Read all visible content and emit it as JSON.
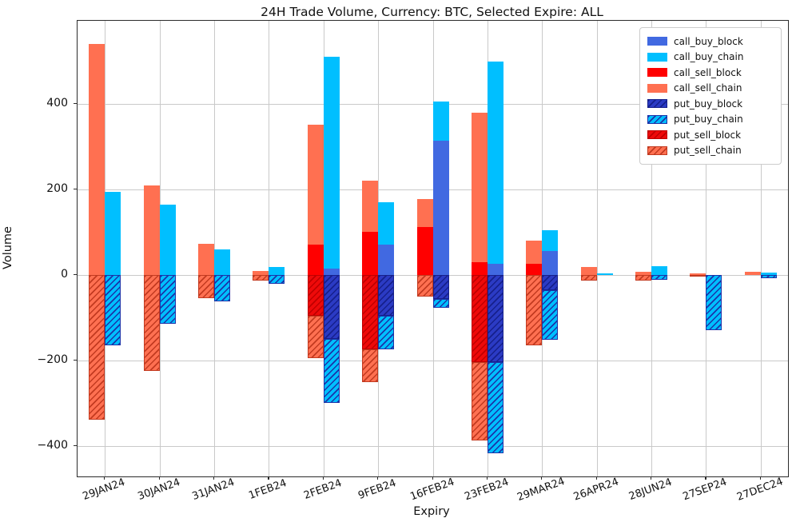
{
  "chart_data": {
    "type": "bar",
    "stacked": true,
    "title": "24H Trade Volume, Currency: BTC, Selected Expire: ALL",
    "xlabel": "Expiry",
    "ylabel": "Volume",
    "ylim": [
      -472,
      595
    ],
    "yticks": [
      -400,
      -200,
      0,
      200,
      400
    ],
    "grid": true,
    "legend_position": "upper right",
    "categories": [
      "29JAN24",
      "30JAN24",
      "31JAN24",
      "1FEB24",
      "2FEB24",
      "9FEB24",
      "16FEB24",
      "23FEB24",
      "29MAR24",
      "26APR24",
      "28JUN24",
      "27SEP24",
      "27DEC24"
    ],
    "bar_groups": {
      "sell_bar_series": [
        "call_sell_block",
        "call_sell_chain",
        "put_sell_block",
        "put_sell_chain"
      ],
      "buy_bar_series": [
        "call_buy_block",
        "call_buy_chain",
        "put_buy_block",
        "put_buy_chain"
      ]
    },
    "series": [
      {
        "name": "call_buy_block",
        "color": "#4169E1",
        "hatch": false,
        "hatch_color": null,
        "values": [
          0,
          0,
          0,
          0,
          15,
          70,
          315,
          25,
          55,
          0,
          0,
          0,
          0
        ]
      },
      {
        "name": "call_buy_chain",
        "color": "#00BFFF",
        "hatch": false,
        "hatch_color": null,
        "values": [
          195,
          165,
          60,
          18,
          495,
          100,
          90,
          475,
          50,
          3,
          20,
          0,
          5
        ]
      },
      {
        "name": "call_sell_block",
        "color": "#FF0000",
        "hatch": false,
        "hatch_color": null,
        "values": [
          0,
          0,
          0,
          0,
          70,
          100,
          112,
          30,
          25,
          0,
          0,
          0,
          0
        ]
      },
      {
        "name": "call_sell_chain",
        "color": "#FF7051",
        "hatch": false,
        "hatch_color": null,
        "values": [
          540,
          210,
          72,
          10,
          282,
          120,
          65,
          350,
          55,
          18,
          8,
          3,
          8
        ]
      },
      {
        "name": "put_buy_block",
        "color": "#2B3BC4",
        "hatch": true,
        "hatch_color": "#16208C",
        "values": [
          0,
          0,
          0,
          0,
          -150,
          -95,
          -57,
          -205,
          -35,
          0,
          0,
          0,
          0
        ]
      },
      {
        "name": "put_buy_chain",
        "color": "#00BFFF",
        "hatch": true,
        "hatch_color": "#1C33A8",
        "values": [
          -165,
          -115,
          -62,
          -20,
          -150,
          -80,
          -20,
          -212,
          -117,
          0,
          -12,
          -130,
          -8
        ]
      },
      {
        "name": "put_sell_block",
        "color": "#EE0A0A",
        "hatch": true,
        "hatch_color": "#C00000",
        "values": [
          0,
          0,
          0,
          0,
          -95,
          -175,
          0,
          -205,
          0,
          0,
          0,
          0,
          0
        ]
      },
      {
        "name": "put_sell_chain",
        "color": "#FF7051",
        "hatch": true,
        "hatch_color": "#C23A20",
        "values": [
          -340,
          -225,
          -55,
          -14,
          -100,
          -77,
          -50,
          -182,
          -165,
          -14,
          -13,
          -3,
          0
        ]
      }
    ]
  }
}
